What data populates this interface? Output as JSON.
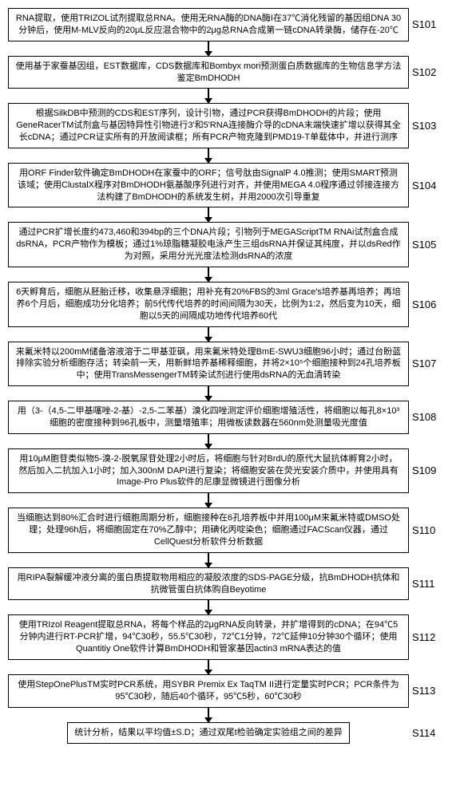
{
  "flow": {
    "box_border_color": "#000000",
    "box_bg": "#ffffff",
    "font_size_box": 11,
    "font_size_label": 13,
    "line_height": 1.35,
    "arrow_color": "#000000",
    "arrow_width": 10,
    "arrow_height": 7,
    "connector_height": 18,
    "steps": [
      {
        "id": "S101",
        "text": "RNA提取，使用TRIZOL试剂提取总RNA。使用无RNA酶的DNA酶I在37℃消化残留的基因组DNA 30分钟后，使用M-MLV反向的20μL反应混合物中的2μg总RNA合成第一链cDNA转录酶，储存在-20℃"
      },
      {
        "id": "S102",
        "text": "使用基于家蚕基因组，EST数据库，CDS数据库和Bombyx mori预测蛋白质数据库的生物信息学方法鉴定BmDHODH"
      },
      {
        "id": "S103",
        "text": "根据SilkDB中预测的CDS和EST序列，设计引物，通过PCR获得BmDHODH的片段；使用GeneRacerTM试剂盒与基因特异性引物进行3'和5'RNA连接酶介导的cDNA末端快速扩增以获得其全长cDNA；通过PCR证实所有的开放阅读框；所有PCR产物克隆到PMD19-T单载体中，并进行测序"
      },
      {
        "id": "S104",
        "text": "用ORF Finder软件确定BmDHODH在家蚕中的ORF；信号肽由SignalP 4.0推测；使用SMART预测该域；使用ClustalX程序对BmDHODH氨基酸序列进行对齐，并使用MEGA 4.0程序通过邻接连接方法构建了BmDHODH的系统发生树，并用2000次引导重复"
      },
      {
        "id": "S105",
        "text": "通过PCR扩增长度约473,460和394bp的三个DNA片段；引物列于MEGAScriptTM RNAi试剂盒合成dsRNA，PCR产物作为模板；通过1%琼脂糖凝胶电泳产生三组dsRNA并保证其纯度，并以dsRed作为对照，采用分光光度法检测dsRNA的浓度"
      },
      {
        "id": "S106",
        "text": "6天孵育后，细胞从胚胎迁移，收集悬浮细胞；用补充有20%FBS的3ml Grace's培养基再培养；再培养6个月后，细胞成功分化培养；前5代传代培养的时间间隔为30天，比例为1:2，然后变为10天，细胞以5天的间隔成功地传代培养60代"
      },
      {
        "id": "S107",
        "text": "来氟米特以200mM储备溶液溶于二甲基亚砜，用来氟米特处理BmE-SWU3细胞96小时；通过台盼蓝排除实验分析细胞存活；转染前一天，用新鲜培养基稀释细胞，并将2×10⁵个细胞接种到24孔培养板中；使用TransMessengerTM转染试剂进行使用dsRNA的无血清转染"
      },
      {
        "id": "S108",
        "text": "用（3-（4,5-二甲基噻唑-2-基）-2,5-二苯基）溴化四唑测定评价细胞增殖活性，将细胞以每孔8×10³细胞的密度接种到96孔板中，测量增殖率；用微板读数器在560nm处测量吸光度值"
      },
      {
        "id": "S109",
        "text": "用10μM胞苷类似物5-溴-2-脱氧尿苷处理2小时后，将细胞与针对BrdU的原代大鼠抗体孵育2小时，然后加入二抗加入1小时；加入300nM DAPI进行复染；将细胞安装在荧光安装介质中，并使用具有Image-Pro Plus软件的尼康显微镜进行图像分析"
      },
      {
        "id": "S110",
        "text": "当细胞达到80%汇合时进行细胞周期分析，细胞接种在6孔培养板中并用100μM来氟米特或DMSO处理；处理96h后，将细胞固定在70%乙醇中；用碘化丙啶染色；细胞通过FACScan仪器，通过CellQuest分析软件分析数据"
      },
      {
        "id": "S111",
        "text": "用RIPA裂解缓冲液分离的蛋白质提取物用相应的凝胶浓度的SDS-PAGE分级，抗BmDHODH抗体和抗微管蛋白抗体购自Beyotime"
      },
      {
        "id": "S112",
        "text": "使用TRIzol Reagent提取总RNA，将每个样品的2μgRNA反向转录，并扩增得到的cDNA；在94℃5分钟内进行RT-PCR扩增，94℃30秒，55.5℃30秒，72℃1分钟，72℃延伸10分钟30个循环；使用Quantitiy One软件计算BmDHODH和管家基因actin3 mRNA表达的值"
      },
      {
        "id": "S113",
        "text": "使用StepOnePlusTM实时PCR系统，用SYBR Premix Ex TaqTM II进行定量实时PCR；PCR条件为95℃30秒，随后40个循环，95℃5秒，60℃30秒"
      },
      {
        "id": "S114",
        "text": "统计分析，结果以平均值±S.D；通过双尾t检验确定实验组之间的差异"
      }
    ]
  }
}
